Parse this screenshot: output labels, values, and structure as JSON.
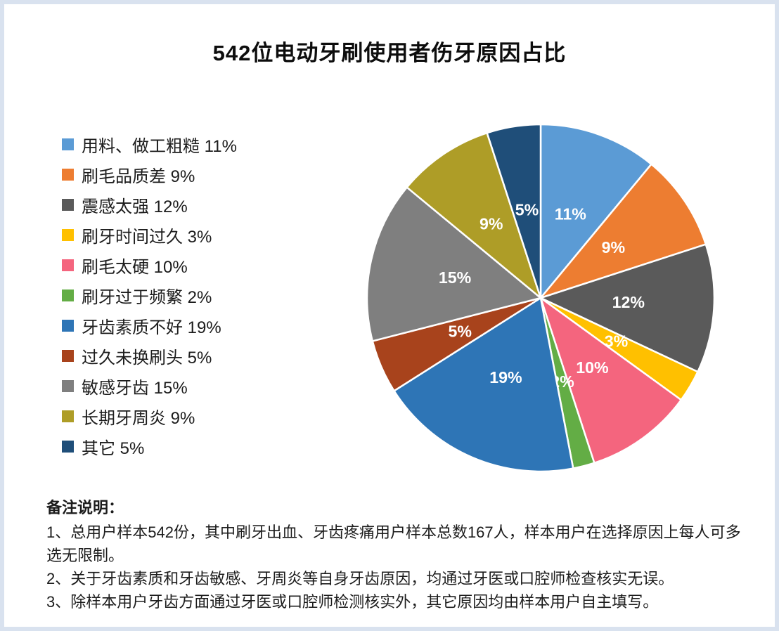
{
  "title": "542位电动牙刷使用者伤牙原因占比",
  "chart_data": {
    "type": "pie",
    "title": "542位电动牙刷使用者伤牙原因占比",
    "unit": "%",
    "legend_position": "left",
    "start_angle_deg": 0,
    "direction": "clockwise",
    "labels_inside": true,
    "slices": [
      {
        "label": "用料、做工粗糙",
        "value": 11,
        "color": "#5B9BD5"
      },
      {
        "label": "刷毛品质差",
        "value": 9,
        "color": "#ED7D31"
      },
      {
        "label": "震感太强",
        "value": 12,
        "color": "#5A5A5A"
      },
      {
        "label": "刷牙时间过久",
        "value": 3,
        "color": "#FFC000"
      },
      {
        "label": "刷毛太硬",
        "value": 10,
        "color": "#F4657E"
      },
      {
        "label": "刷牙过于频繁",
        "value": 2,
        "color": "#63AD45"
      },
      {
        "label": "牙齿素质不好",
        "value": 19,
        "color": "#2E75B6"
      },
      {
        "label": "过久未换刷头",
        "value": 5,
        "color": "#A8431C"
      },
      {
        "label": "敏感牙齿",
        "value": 15,
        "color": "#7F7F7F"
      },
      {
        "label": "长期牙周炎",
        "value": 9,
        "color": "#AE9D27"
      },
      {
        "label": "其它",
        "value": 5,
        "color": "#1F4E79"
      }
    ]
  },
  "notes": {
    "heading": "备注说明：",
    "items": [
      "1、总用户样本542份，其中刷牙出血、牙齿疼痛用户样本总数167人，样本用户在选择原因上每人可多选无限制。",
      "2、关于牙齿素质和牙齿敏感、牙周炎等自身牙齿原因，均通过牙医或口腔师检查核实无误。",
      "3、除样本用户牙齿方面通过牙医或口腔师检测核实外，其它原因均由样本用户自主填写。"
    ]
  }
}
